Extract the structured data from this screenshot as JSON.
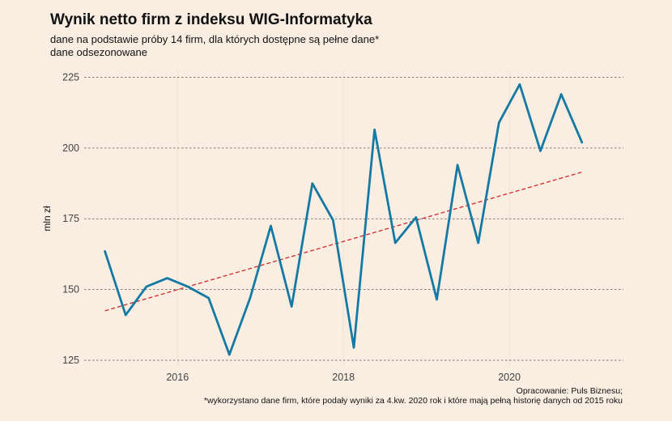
{
  "title": "Wynik netto firm z indeksu WIG-Informatyka",
  "subtitle_line1": "dane na podstawie próby 14 firm, dla których dostępne są pełne dane*",
  "subtitle_line2": "dane odsezonowane",
  "caption_line1": "Opracowanie: Puls Biznesu;",
  "caption_line2": "*wykorzystano dane firm, które podały wyniki za 4.kw. 2020 rok i które mają pełną historię danych od 2015 roku",
  "chart_data": {
    "type": "line",
    "title": "Wynik netto firm z indeksu WIG-Informatyka",
    "xlabel": "",
    "ylabel": "mln zł",
    "xlim": [
      2014.875,
      2021.375
    ],
    "ylim": [
      123,
      228
    ],
    "yticks": [
      125,
      150,
      175,
      200,
      225
    ],
    "xticks": [
      2016,
      2018,
      2020
    ],
    "grid": "horizontal dashed",
    "colors": {
      "series": "#1479a3",
      "trend": "#d1282b",
      "grid": "#555555",
      "background": "#faeee2"
    },
    "series": [
      {
        "x": [
          2015.125,
          2015.375,
          2015.625,
          2015.875,
          2016.125,
          2016.375,
          2016.625,
          2016.875,
          2017.125,
          2017.375,
          2017.625,
          2017.875,
          2018.125,
          2018.375,
          2018.625,
          2018.875,
          2019.125,
          2019.375,
          2019.625,
          2019.875,
          2020.125,
          2020.375,
          2020.625,
          2020.875
        ],
        "y": [
          163.5,
          141,
          151,
          154,
          151,
          147,
          127,
          147,
          172.5,
          144,
          187.5,
          174.5,
          129.5,
          206.5,
          166.5,
          175.5,
          146.5,
          194,
          166.5,
          209,
          222.5,
          199,
          219,
          202
        ]
      },
      {
        "style": "dashed",
        "x": [
          2015.125,
          2020.875
        ],
        "y": [
          142.5,
          191.5
        ]
      }
    ]
  }
}
